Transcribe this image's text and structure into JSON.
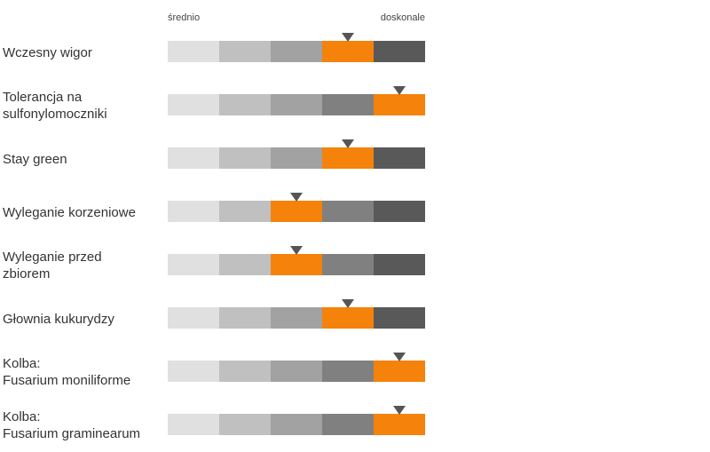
{
  "chart_data": {
    "type": "rating-scale",
    "scale": {
      "low_label": "średnio",
      "high_label": "doskonale",
      "levels": 5
    },
    "colors": {
      "segments": [
        "#e0e0e0",
        "#c0c0c0",
        "#a2a2a2",
        "#808080",
        "#595959"
      ],
      "highlight": "#f5820a",
      "marker": "#555555"
    },
    "traits": [
      {
        "label": "Wczesny wigor",
        "rating": 4
      },
      {
        "label": "Tolerancja na\nsulfonylomoczniki",
        "rating": 5
      },
      {
        "label": "Stay green",
        "rating": 4
      },
      {
        "label": "Wyleganie korzeniowe",
        "rating": 3
      },
      {
        "label": "Wyleganie przed\nzbiorem",
        "rating": 3
      },
      {
        "label": "Głownia kukurydzy",
        "rating": 4
      },
      {
        "label": "Kolba:\nFusarium moniliforme",
        "rating": 5
      },
      {
        "label": "Kolba:\nFusarium graminearum",
        "rating": 5
      }
    ]
  }
}
